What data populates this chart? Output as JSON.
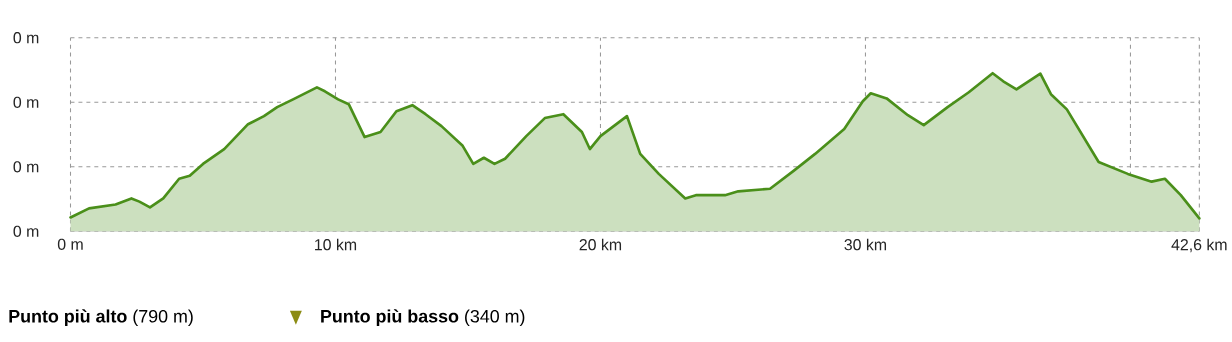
{
  "chart_data": {
    "type": "area",
    "x": [
      0,
      0.7,
      1.7,
      2.3,
      2.6,
      3.0,
      3.5,
      4.1,
      4.5,
      5.0,
      5.8,
      6.7,
      7.3,
      7.8,
      8.4,
      9.3,
      9.6,
      10.1,
      10.5,
      11.1,
      11.7,
      12.3,
      12.9,
      13.4,
      14.0,
      14.8,
      15.2,
      15.6,
      16.0,
      16.4,
      17.2,
      17.9,
      18.6,
      19.3,
      19.6,
      20.0,
      21.0,
      21.5,
      22.2,
      23.2,
      23.6,
      24.7,
      25.2,
      26.4,
      27.3,
      28.1,
      29.2,
      29.9,
      30.2,
      30.8,
      31.6,
      32.2,
      33.1,
      33.9,
      34.8,
      35.2,
      35.7,
      36.6,
      37.0,
      37.6,
      38.8,
      39.9,
      40.8,
      41.3,
      41.9,
      42.6
    ],
    "values": [
      343,
      371,
      383,
      402,
      392,
      374,
      402,
      463,
      472,
      509,
      555,
      632,
      657,
      685,
      709,
      746,
      734,
      709,
      694,
      592,
      608,
      672,
      691,
      663,
      626,
      565,
      509,
      528,
      509,
      525,
      595,
      651,
      663,
      608,
      555,
      595,
      657,
      540,
      478,
      402,
      412,
      412,
      424,
      432,
      488,
      540,
      617,
      703,
      728,
      712,
      660,
      629,
      685,
      731,
      790,
      765,
      740,
      789,
      725,
      678,
      515,
      478,
      454,
      463,
      412,
      340
    ],
    "color": "#4a8f1a",
    "xlim": [
      0,
      42.6
    ],
    "ylim": [
      300,
      900
    ],
    "xticks": [
      {
        "value": 0,
        "label": "0 m"
      },
      {
        "value": 10,
        "label": "10 km"
      },
      {
        "value": 20,
        "label": "20 km"
      },
      {
        "value": 30,
        "label": "30 km"
      },
      {
        "value": 40,
        "label": null
      },
      {
        "value": 42.6,
        "label": "42,6 km"
      }
    ],
    "yticks": [
      {
        "value": 300,
        "label": "0 m"
      },
      {
        "value": 500,
        "label": "0 m"
      },
      {
        "value": 700,
        "label": "0 m"
      },
      {
        "value": 900,
        "label": "0 m"
      }
    ],
    "grid": true,
    "annotations": [
      "**Punto più alto** (790 m)",
      "**Punto più basso** (340 m)"
    ]
  }
}
